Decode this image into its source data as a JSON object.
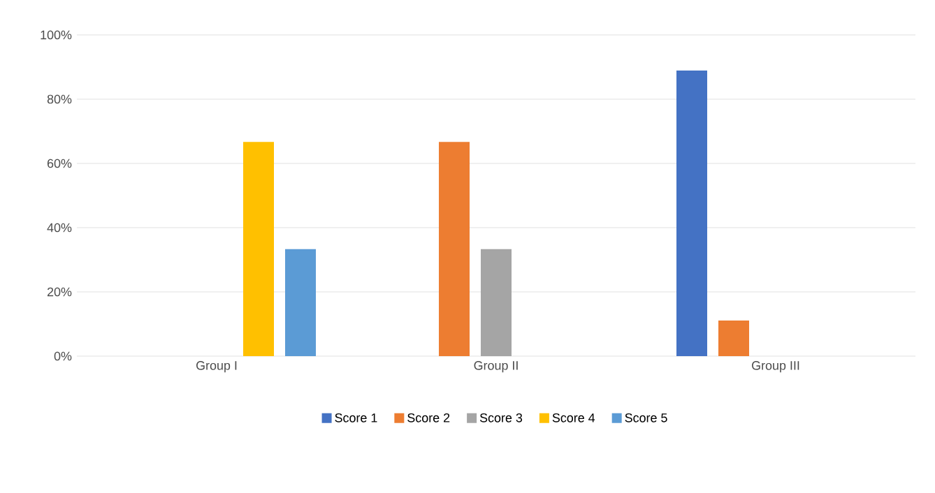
{
  "chart_data": {
    "type": "bar",
    "categories": [
      "Group I",
      "Group II",
      "Group III"
    ],
    "series": [
      {
        "name": "Score 1",
        "color": "#4472c4",
        "values": [
          0,
          0,
          88.9
        ]
      },
      {
        "name": "Score 2",
        "color": "#ed7d31",
        "values": [
          0,
          66.7,
          11.1
        ]
      },
      {
        "name": "Score 3",
        "color": "#a5a5a5",
        "values": [
          0,
          33.3,
          0
        ]
      },
      {
        "name": "Score 4",
        "color": "#ffc000",
        "values": [
          66.7,
          0,
          0
        ]
      },
      {
        "name": "Score 5",
        "color": "#5b9bd5",
        "values": [
          33.3,
          0,
          0
        ]
      }
    ],
    "ylim": [
      0,
      100
    ],
    "yticks": [
      {
        "value": 0,
        "label": "0%"
      },
      {
        "value": 20,
        "label": "20%"
      },
      {
        "value": 40,
        "label": "40%"
      },
      {
        "value": 60,
        "label": "60%"
      },
      {
        "value": 80,
        "label": "80%"
      },
      {
        "value": 100,
        "label": "100%"
      }
    ],
    "grid": "y",
    "legend": "bottom"
  }
}
